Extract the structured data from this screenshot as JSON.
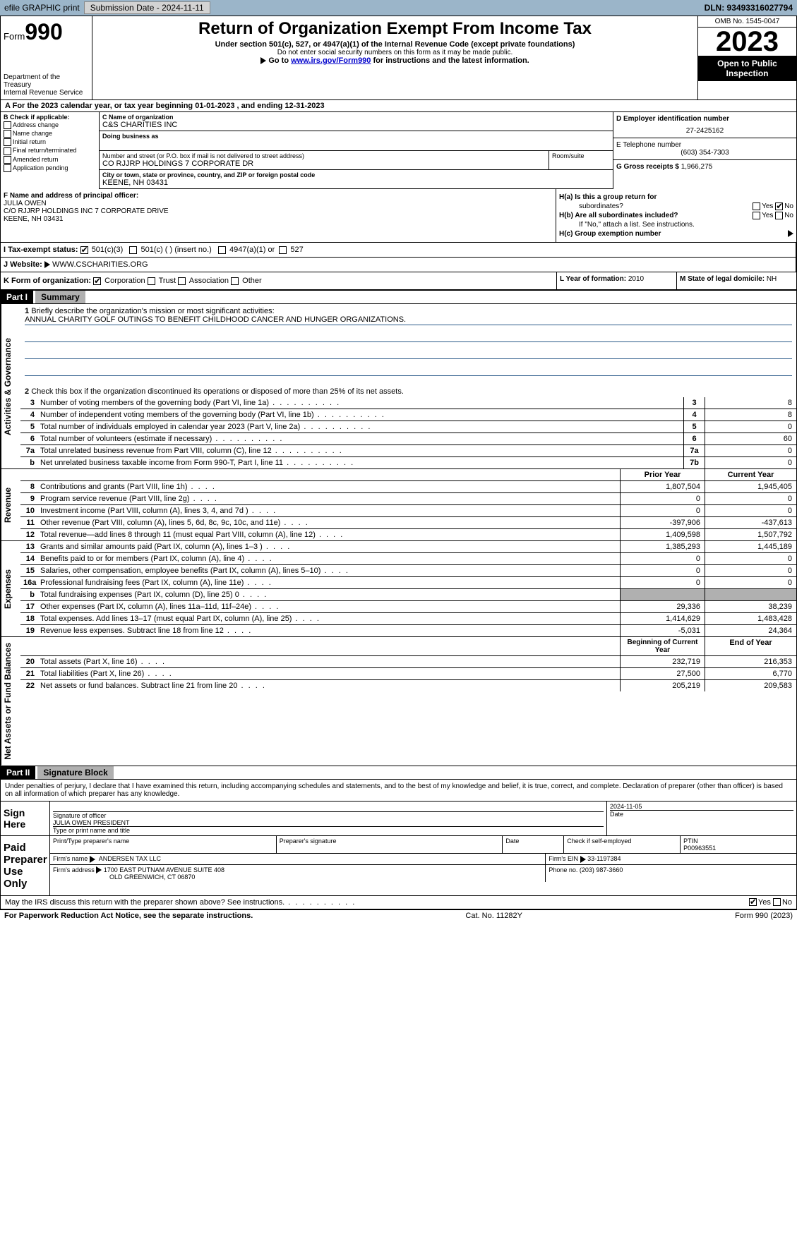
{
  "topbar": {
    "efile": "efile GRAPHIC print",
    "submission": "Submission Date - 2024-11-11",
    "dln": "DLN: 93493316027794"
  },
  "header": {
    "form_label": "Form",
    "form_num": "990",
    "dept": "Department of the Treasury",
    "irs": "Internal Revenue Service",
    "title": "Return of Organization Exempt From Income Tax",
    "subtitle": "Under section 501(c), 527, or 4947(a)(1) of the Internal Revenue Code (except private foundations)",
    "warn": "Do not enter social security numbers on this form as it may be made public.",
    "goto_pre": "Go to ",
    "goto_link": "www.irs.gov/Form990",
    "goto_post": " for instructions and the latest information.",
    "omb": "OMB No. 1545-0047",
    "year": "2023",
    "open": "Open to Public Inspection"
  },
  "row_a": "For the 2023 calendar year, or tax year beginning 01-01-2023   , and ending 12-31-2023",
  "section_b": {
    "title": "B Check if applicable:",
    "opts": [
      "Address change",
      "Name change",
      "Initial return",
      "Final return/terminated",
      "Amended return",
      "Application pending"
    ]
  },
  "section_c": {
    "name_lbl": "C Name of organization",
    "name": "C&S CHARITIES INC",
    "dba_lbl": "Doing business as",
    "addr_lbl": "Number and street (or P.O. box if mail is not delivered to street address)",
    "addr": "CO RJJRP HOLDINGS 7 CORPORATE DR",
    "room_lbl": "Room/suite",
    "city_lbl": "City or town, state or province, country, and ZIP or foreign postal code",
    "city": "KEENE, NH  03431"
  },
  "section_d": {
    "lbl": "D Employer identification number",
    "val": "27-2425162"
  },
  "section_e": {
    "lbl": "E Telephone number",
    "val": "(603) 354-7303"
  },
  "section_g": {
    "lbl": "G Gross receipts $",
    "val": "1,966,275"
  },
  "section_f": {
    "lbl": "F  Name and address of principal officer:",
    "name": "JULIA OWEN",
    "addr1": "C/O RJJRP HOLDINGS INC 7 CORPORATE DRIVE",
    "addr2": "KEENE, NH  03431"
  },
  "section_h": {
    "a": "H(a)  Is this a group return for",
    "a2": "subordinates?",
    "b": "H(b)  Are all subordinates included?",
    "note": "If \"No,\" attach a list. See instructions.",
    "c": "H(c)  Group exemption number",
    "yes": "Yes",
    "no": "No"
  },
  "section_i": {
    "lbl": "I   Tax-exempt status:",
    "o1": "501(c)(3)",
    "o2": "501(c) (  ) (insert no.)",
    "o3": "4947(a)(1) or",
    "o4": "527"
  },
  "section_j": {
    "lbl": "J   Website:",
    "val": "WWW.CSCHARITIES.ORG"
  },
  "section_k": {
    "lbl": "K Form of organization:",
    "o1": "Corporation",
    "o2": "Trust",
    "o3": "Association",
    "o4": "Other"
  },
  "section_l": {
    "lbl": "L Year of formation:",
    "val": "2010"
  },
  "section_m": {
    "lbl": "M State of legal domicile:",
    "val": "NH"
  },
  "parts": {
    "p1": "Part I",
    "p1_title": "Summary",
    "p2": "Part II",
    "p2_title": "Signature Block"
  },
  "summary": {
    "vlabels": {
      "gov": "Activities & Governance",
      "rev": "Revenue",
      "exp": "Expenses",
      "net": "Net Assets or Fund Balances"
    },
    "l1_lbl": "Briefly describe the organization's mission or most significant activities:",
    "l1_val": "ANNUAL CHARITY GOLF OUTINGS TO BENEFIT CHILDHOOD CANCER AND HUNGER ORGANIZATIONS.",
    "l2": "Check this box       if the organization discontinued its operations or disposed of more than 25% of its net assets.",
    "lines_gov": [
      {
        "n": "3",
        "t": "Number of voting members of the governing body (Part VI, line 1a)",
        "box": "3",
        "v": "8"
      },
      {
        "n": "4",
        "t": "Number of independent voting members of the governing body (Part VI, line 1b)",
        "box": "4",
        "v": "8"
      },
      {
        "n": "5",
        "t": "Total number of individuals employed in calendar year 2023 (Part V, line 2a)",
        "box": "5",
        "v": "0"
      },
      {
        "n": "6",
        "t": "Total number of volunteers (estimate if necessary)",
        "box": "6",
        "v": "60"
      },
      {
        "n": "7a",
        "t": "Total unrelated business revenue from Part VIII, column (C), line 12",
        "box": "7a",
        "v": "0"
      },
      {
        "n": "b",
        "t": "Net unrelated business taxable income from Form 990-T, Part I, line 11",
        "box": "7b",
        "v": "0"
      }
    ],
    "col_prior": "Prior Year",
    "col_current": "Current Year",
    "lines_rev": [
      {
        "n": "8",
        "t": "Contributions and grants (Part VIII, line 1h)",
        "p": "1,807,504",
        "c": "1,945,405"
      },
      {
        "n": "9",
        "t": "Program service revenue (Part VIII, line 2g)",
        "p": "0",
        "c": "0"
      },
      {
        "n": "10",
        "t": "Investment income (Part VIII, column (A), lines 3, 4, and 7d )",
        "p": "0",
        "c": "0"
      },
      {
        "n": "11",
        "t": "Other revenue (Part VIII, column (A), lines 5, 6d, 8c, 9c, 10c, and 11e)",
        "p": "-397,906",
        "c": "-437,613"
      },
      {
        "n": "12",
        "t": "Total revenue—add lines 8 through 11 (must equal Part VIII, column (A), line 12)",
        "p": "1,409,598",
        "c": "1,507,792"
      }
    ],
    "lines_exp": [
      {
        "n": "13",
        "t": "Grants and similar amounts paid (Part IX, column (A), lines 1–3 )",
        "p": "1,385,293",
        "c": "1,445,189"
      },
      {
        "n": "14",
        "t": "Benefits paid to or for members (Part IX, column (A), line 4)",
        "p": "0",
        "c": "0"
      },
      {
        "n": "15",
        "t": "Salaries, other compensation, employee benefits (Part IX, column (A), lines 5–10)",
        "p": "0",
        "c": "0"
      },
      {
        "n": "16a",
        "t": "Professional fundraising fees (Part IX, column (A), line 11e)",
        "p": "0",
        "c": "0"
      },
      {
        "n": "b",
        "t": "Total fundraising expenses (Part IX, column (D), line 25) 0",
        "p": "",
        "c": "",
        "gray": true
      },
      {
        "n": "17",
        "t": "Other expenses (Part IX, column (A), lines 11a–11d, 11f–24e)",
        "p": "29,336",
        "c": "38,239"
      },
      {
        "n": "18",
        "t": "Total expenses. Add lines 13–17 (must equal Part IX, column (A), line 25)",
        "p": "1,414,629",
        "c": "1,483,428"
      },
      {
        "n": "19",
        "t": "Revenue less expenses. Subtract line 18 from line 12",
        "p": "-5,031",
        "c": "24,364"
      }
    ],
    "col_begin": "Beginning of Current Year",
    "col_end": "End of Year",
    "lines_net": [
      {
        "n": "20",
        "t": "Total assets (Part X, line 16)",
        "p": "232,719",
        "c": "216,353"
      },
      {
        "n": "21",
        "t": "Total liabilities (Part X, line 26)",
        "p": "27,500",
        "c": "6,770"
      },
      {
        "n": "22",
        "t": "Net assets or fund balances. Subtract line 21 from line 20",
        "p": "205,219",
        "c": "209,583"
      }
    ]
  },
  "sig": {
    "intro": "Under penalties of perjury, I declare that I have examined this return, including accompanying schedules and statements, and to the best of my knowledge and belief, it is true, correct, and complete. Declaration of preparer (other than officer) is based on all information of which preparer has any knowledge.",
    "sign_here": "Sign Here",
    "sig_officer": "Signature of officer",
    "officer_name": "JULIA OWEN  PRESIDENT",
    "type_name": "Type or print name and title",
    "date_lbl": "Date",
    "date_val": "2024-11-05",
    "paid": "Paid Preparer Use Only",
    "prep_name_lbl": "Print/Type preparer's name",
    "prep_sig_lbl": "Preparer's signature",
    "check_self": "Check       if self-employed",
    "ptin_lbl": "PTIN",
    "ptin": "P00963551",
    "firm_name_lbl": "Firm's name",
    "firm_name": "ANDERSEN TAX LLC",
    "firm_ein_lbl": "Firm's EIN",
    "firm_ein": "33-1197384",
    "firm_addr_lbl": "Firm's address",
    "firm_addr1": "1700 EAST PUTNAM AVENUE SUITE 408",
    "firm_addr2": "OLD GREENWICH, CT  06870",
    "phone_lbl": "Phone no.",
    "phone": "(203) 987-3660",
    "discuss": "May the IRS discuss this return with the preparer shown above? See instructions.",
    "yes": "Yes",
    "no": "No"
  },
  "footer": {
    "left": "For Paperwork Reduction Act Notice, see the separate instructions.",
    "mid": "Cat. No. 11282Y",
    "right": "Form 990 (2023)"
  }
}
